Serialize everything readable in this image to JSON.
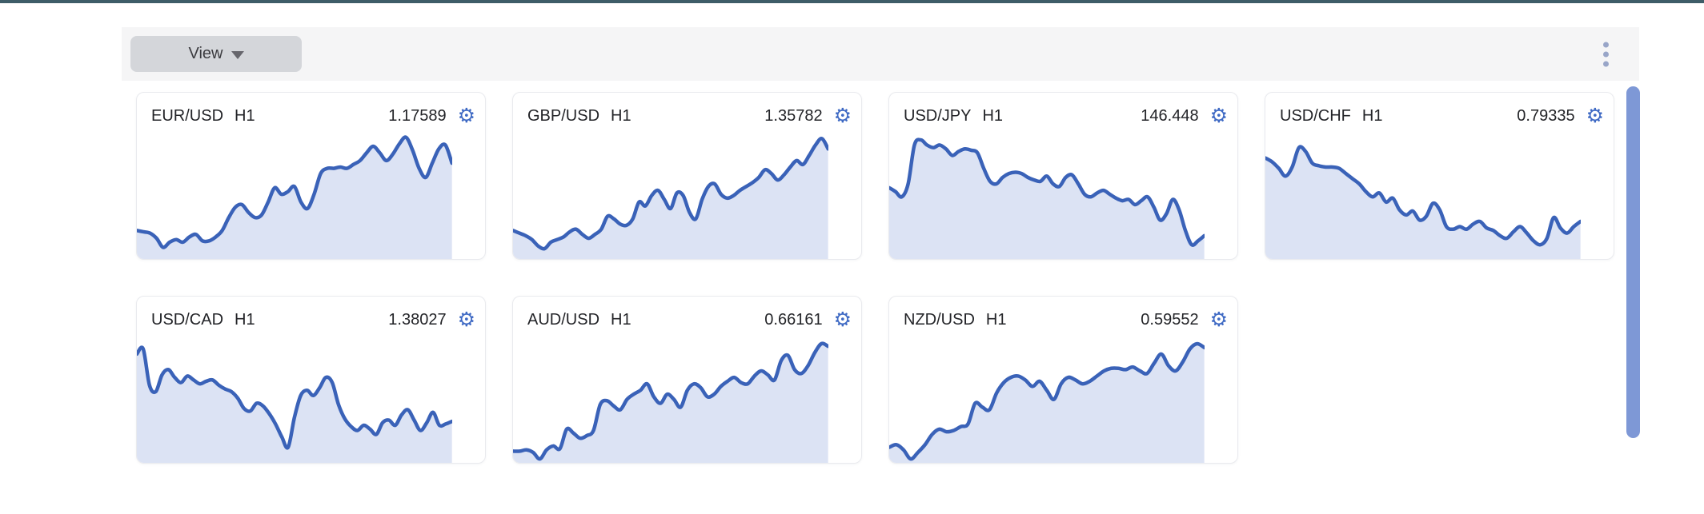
{
  "toolbar": {
    "view_button_label": "View",
    "background": "#f5f5f6"
  },
  "colors": {
    "top_bar": "#3e5d68",
    "line": "#3a62b8",
    "fill": "#dce3f4",
    "gear": "#3f6ac4",
    "card_border": "#e9eaee",
    "scrollbar": "#7e98d6",
    "text": "#232428"
  },
  "icons": {
    "gear": "⚙",
    "kebab": "vertical-three-dots",
    "caret": "triangle-down"
  },
  "chart_data": [
    {
      "type": "area",
      "symbol": "EUR/USD",
      "timeframe": "H1",
      "price": "1.17589",
      "trend": "up",
      "ylim": [
        0,
        100
      ],
      "values": [
        22,
        21,
        20,
        16,
        9,
        13,
        15,
        13,
        17,
        19,
        14,
        14,
        17,
        22,
        32,
        40,
        42,
        36,
        32,
        34,
        44,
        55,
        50,
        52,
        56,
        44,
        39,
        50,
        66,
        70,
        70,
        71,
        70,
        73,
        76,
        82,
        87,
        82,
        76,
        81,
        89,
        94,
        84,
        70,
        63,
        74,
        85,
        88,
        74
      ]
    },
    {
      "type": "area",
      "symbol": "GBP/USD",
      "timeframe": "H1",
      "price": "1.35782",
      "trend": "up",
      "ylim": [
        0,
        100
      ],
      "values": [
        22,
        20,
        18,
        15,
        10,
        8,
        13,
        15,
        17,
        21,
        23,
        19,
        16,
        19,
        23,
        33,
        31,
        27,
        26,
        31,
        44,
        41,
        49,
        53,
        46,
        39,
        51,
        49,
        36,
        31,
        46,
        56,
        58,
        50,
        47,
        49,
        53,
        56,
        59,
        63,
        69,
        66,
        61,
        65,
        71,
        76,
        73,
        80,
        88,
        93,
        85
      ]
    },
    {
      "type": "area",
      "symbol": "USD/JPY",
      "timeframe": "H1",
      "price": "146.448",
      "trend": "down",
      "ylim": [
        0,
        100
      ],
      "values": [
        55,
        52,
        48,
        58,
        88,
        92,
        88,
        86,
        88,
        85,
        80,
        83,
        85,
        84,
        82,
        70,
        60,
        58,
        63,
        66,
        67,
        66,
        63,
        61,
        60,
        64,
        58,
        56,
        63,
        65,
        58,
        50,
        48,
        51,
        53,
        50,
        47,
        45,
        46,
        42,
        45,
        48,
        40,
        30,
        35,
        46,
        38,
        22,
        11,
        14,
        18
      ]
    },
    {
      "type": "area",
      "symbol": "USD/CHF",
      "timeframe": "H1",
      "price": "0.79335",
      "trend": "down",
      "ylim": [
        0,
        100
      ],
      "values": [
        78,
        75,
        70,
        64,
        71,
        86,
        83,
        74,
        72,
        71,
        71,
        70,
        66,
        62,
        58,
        52,
        48,
        51,
        44,
        47,
        38,
        34,
        37,
        30,
        33,
        43,
        38,
        25,
        23,
        25,
        23,
        27,
        29,
        24,
        22,
        18,
        16,
        21,
        25,
        20,
        14,
        11,
        16,
        32,
        24,
        20,
        25,
        29
      ]
    },
    {
      "type": "area",
      "symbol": "USD/CAD",
      "timeframe": "H1",
      "price": "1.38027",
      "trend": "down",
      "ylim": [
        0,
        100
      ],
      "values": [
        84,
        88,
        60,
        55,
        68,
        72,
        66,
        62,
        67,
        64,
        61,
        63,
        64,
        60,
        57,
        55,
        50,
        42,
        40,
        46,
        44,
        38,
        30,
        20,
        12,
        35,
        52,
        56,
        52,
        58,
        66,
        62,
        45,
        34,
        28,
        25,
        29,
        26,
        22,
        31,
        33,
        29,
        37,
        41,
        33,
        25,
        31,
        39,
        29,
        30,
        32
      ]
    },
    {
      "type": "area",
      "symbol": "AUD/USD",
      "timeframe": "H1",
      "price": "0.66161",
      "trend": "up",
      "ylim": [
        0,
        100
      ],
      "values": [
        9,
        9,
        10,
        8,
        3,
        10,
        13,
        11,
        26,
        23,
        19,
        21,
        25,
        45,
        48,
        44,
        41,
        49,
        53,
        56,
        61,
        51,
        46,
        53,
        49,
        43,
        56,
        61,
        58,
        51,
        53,
        59,
        63,
        66,
        62,
        61,
        67,
        71,
        68,
        64,
        79,
        83,
        72,
        69,
        75,
        85,
        92,
        90
      ]
    },
    {
      "type": "area",
      "symbol": "NZD/USD",
      "timeframe": "H1",
      "price": "0.59552",
      "trend": "up",
      "ylim": [
        0,
        100
      ],
      "values": [
        12,
        14,
        10,
        3,
        8,
        14,
        22,
        26,
        24,
        25,
        28,
        30,
        46,
        43,
        41,
        54,
        62,
        66,
        67,
        64,
        59,
        63,
        56,
        49,
        61,
        66,
        64,
        61,
        63,
        67,
        71,
        73,
        73,
        72,
        74,
        71,
        69,
        77,
        84,
        75,
        71,
        78,
        88,
        92,
        89
      ]
    }
  ]
}
